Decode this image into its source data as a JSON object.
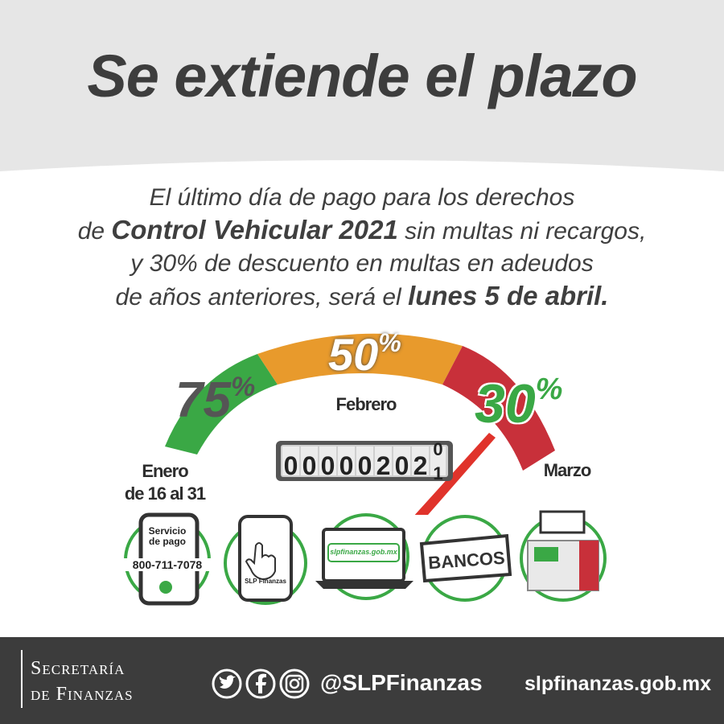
{
  "title": "Se extiende el plazo",
  "subtitle": {
    "line1": "El último día de pago para los derechos",
    "line2_pre": "de ",
    "line2_bold": "Control Vehicular 2021",
    "line2_post": " sin multas ni recargos,",
    "line3": "y 30% de descuento en multas en adeudos",
    "line4_pre": "de años anteriores, será el ",
    "line4_bold": "lunes 5 de abril."
  },
  "gauge": {
    "seg1_pct": "75",
    "seg2_pct": "50",
    "seg3_pct": "30",
    "pct_sign": "%",
    "label_enero_1": "Enero",
    "label_enero_2": "de 16 al 31",
    "label_febrero": "Febrero",
    "label_marzo": "Marzo",
    "odometer": "00000202",
    "odometer_roll_top": "0",
    "odometer_roll_bottom": "1",
    "colors": {
      "green": "#3aa845",
      "orange": "#e89a2c",
      "red": "#c8303a"
    }
  },
  "payment_methods": {
    "phone_title_1": "Servicio",
    "phone_title_2": "de pago",
    "phone_number": "800-711-7078",
    "app_label": "SLP Finanzas",
    "web_label": "slpfinanzas.gob.mx",
    "banks_label": "BANCOS",
    "icons": [
      "phone-call-icon",
      "touch-hand-icon",
      "laptop-icon",
      "bank-banner-icon",
      "atm-kiosk-icon"
    ]
  },
  "footer": {
    "org_line1": "Secretaría",
    "org_line2": "de Finanzas",
    "social_handle": "@SLPFinanzas",
    "website": "slpfinanzas.gob.mx",
    "social_icons": [
      "twitter-icon",
      "facebook-icon",
      "instagram-icon"
    ]
  }
}
